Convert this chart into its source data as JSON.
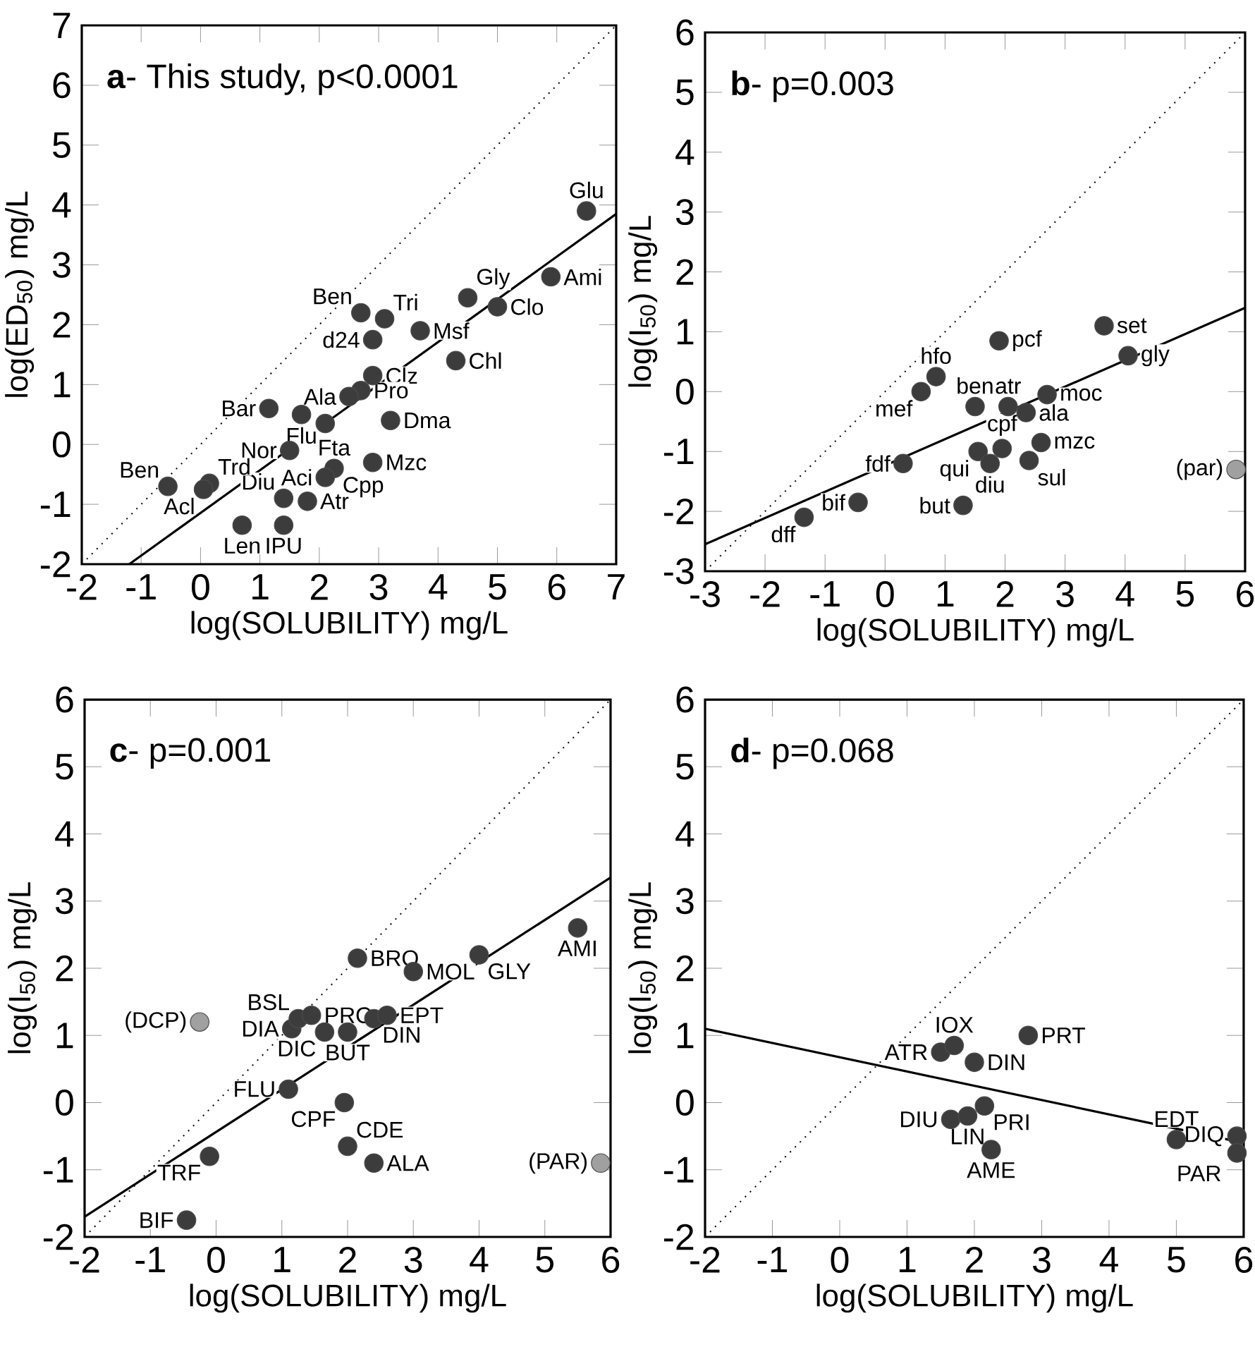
{
  "chart_data": [
    {
      "type": "scatter",
      "title": "**a**- This study, p<0.0001",
      "xlabel": "log(SOLUBILITY)  mg/L",
      "ylabel": "log(ED$_{50}$)  mg/L",
      "xlim": [
        -2,
        7
      ],
      "ylim": [
        -2,
        7
      ],
      "xticks": [
        -2,
        -1,
        0,
        1,
        2,
        3,
        4,
        5,
        6,
        7
      ],
      "yticks": [
        -2,
        -1,
        0,
        1,
        2,
        3,
        4,
        5,
        6,
        7
      ],
      "series": [
        {
          "type": "scatter",
          "marker": "circle",
          "color": "#3c3c3c",
          "x": [
            6.5,
            5.9,
            5.0,
            4.5,
            4.3,
            3.7,
            3.1,
            2.7,
            2.9,
            2.9,
            2.7,
            2.5,
            3.2,
            1.15,
            1.7,
            1.5,
            2.25,
            2.1,
            2.9,
            1.4,
            1.8,
            0.7,
            1.4,
            -0.55,
            0.15,
            0.05,
            2.1
          ],
          "values": [
            3.9,
            2.8,
            2.3,
            2.45,
            1.4,
            1.9,
            2.1,
            2.2,
            1.75,
            1.15,
            0.9,
            0.8,
            0.4,
            0.6,
            0.5,
            -0.1,
            -0.4,
            -0.55,
            -0.3,
            -0.9,
            -0.95,
            -1.35,
            -1.35,
            -0.7,
            -0.65,
            -0.75,
            0.35
          ]
        },
        {
          "type": "line",
          "color": "#000000",
          "marker": "none",
          "line_style": "solid",
          "x": [
            -1.2,
            7
          ],
          "values": [
            -2,
            3.85
          ]
        },
        {
          "type": "line",
          "color": "#000000",
          "marker": "none",
          "line_style": "dotted",
          "x": [
            -2,
            7
          ],
          "values": [
            -2,
            7
          ]
        }
      ],
      "annotations": [
        {
          "text": "Glu",
          "x": 6.5,
          "y": 3.9
        },
        {
          "text": "Ami",
          "x": 5.9,
          "y": 2.8
        },
        {
          "text": "Clo",
          "x": 5.0,
          "y": 2.3
        },
        {
          "text": "Gly",
          "x": 4.5,
          "y": 2.45
        },
        {
          "text": "Chl",
          "x": 4.3,
          "y": 1.4
        },
        {
          "text": "Msf",
          "x": 3.7,
          "y": 1.9
        },
        {
          "text": "Tri",
          "x": 3.1,
          "y": 2.1
        },
        {
          "text": "Ben",
          "x": 2.7,
          "y": 2.2
        },
        {
          "text": "d24",
          "x": 2.9,
          "y": 1.75
        },
        {
          "text": "Clz",
          "x": 2.9,
          "y": 1.15
        },
        {
          "text": "Pro",
          "x": 2.7,
          "y": 0.9
        },
        {
          "text": "Ala",
          "x": 2.5,
          "y": 0.8
        },
        {
          "text": "Dma",
          "x": 3.2,
          "y": 0.4
        },
        {
          "text": "Bar",
          "x": 1.15,
          "y": 0.6
        },
        {
          "text": "Flu",
          "x": 1.7,
          "y": 0.5
        },
        {
          "text": "Nor",
          "x": 1.5,
          "y": -0.1
        },
        {
          "text": "Fta",
          "x": 2.25,
          "y": -0.4
        },
        {
          "text": "Aci",
          "x": 2.1,
          "y": -0.55
        },
        {
          "text": "Mzc",
          "x": 2.9,
          "y": -0.3
        },
        {
          "text": "Cpp",
          "x": 2.25,
          "y": -0.4
        },
        {
          "text": "Diu",
          "x": 1.4,
          "y": -0.9
        },
        {
          "text": "Atr",
          "x": 1.8,
          "y": -0.95
        },
        {
          "text": "Len",
          "x": 0.7,
          "y": -1.35
        },
        {
          "text": "IPU",
          "x": 1.4,
          "y": -1.35
        },
        {
          "text": "Ben",
          "x": -0.55,
          "y": -0.7
        },
        {
          "text": "Trd",
          "x": 0.15,
          "y": -0.65
        },
        {
          "text": "Acl",
          "x": 0.05,
          "y": -0.75
        }
      ]
    },
    {
      "type": "scatter",
      "title": "**b**-    p=0.003",
      "xlabel": "log(SOLUBILITY)  mg/L",
      "ylabel": "log(I$_{50}$)  mg/L",
      "xlim": [
        -3,
        6
      ],
      "ylim": [
        -3,
        6
      ],
      "xticks": [
        -3,
        -2,
        -1,
        0,
        1,
        2,
        3,
        4,
        5,
        6
      ],
      "yticks": [
        -3,
        -2,
        -1,
        0,
        1,
        2,
        3,
        4,
        5,
        6
      ],
      "series": [
        {
          "type": "scatter",
          "marker": "circle",
          "color": "#3c3c3c",
          "x": [
            -1.35,
            -0.45,
            0.3,
            0.6,
            0.85,
            1.3,
            1.5,
            1.55,
            1.75,
            1.95,
            1.9,
            2.05,
            2.35,
            2.4,
            2.6,
            2.7,
            3.65,
            4.05
          ],
          "values": [
            -2.1,
            -1.85,
            -1.2,
            0.0,
            0.25,
            -1.9,
            -0.25,
            -1.0,
            -1.2,
            -0.95,
            0.85,
            -0.25,
            -0.35,
            -1.15,
            -0.85,
            -0.05,
            1.1,
            0.6
          ]
        },
        {
          "type": "scatter",
          "marker": "circle",
          "color": "#a0a0a0",
          "x": [
            5.85
          ],
          "values": [
            -1.3
          ]
        },
        {
          "type": "line",
          "color": "#000000",
          "marker": "none",
          "line_style": "solid",
          "x": [
            -3,
            6
          ],
          "values": [
            -2.55,
            1.4
          ]
        },
        {
          "type": "line",
          "color": "#000000",
          "marker": "none",
          "line_style": "dotted",
          "x": [
            -3,
            6
          ],
          "values": [
            -3,
            6
          ]
        }
      ],
      "annotations": [
        {
          "text": "dff",
          "x": -1.35,
          "y": -2.1
        },
        {
          "text": "bif",
          "x": -0.45,
          "y": -1.85
        },
        {
          "text": "fdf",
          "x": 0.3,
          "y": -1.2
        },
        {
          "text": "mef",
          "x": 0.6,
          "y": 0.0
        },
        {
          "text": "hfo",
          "x": 0.85,
          "y": 0.25
        },
        {
          "text": "but",
          "x": 1.3,
          "y": -1.9
        },
        {
          "text": "ben",
          "x": 1.5,
          "y": -0.25
        },
        {
          "text": "qui",
          "x": 1.55,
          "y": -1.0
        },
        {
          "text": "diu",
          "x": 1.75,
          "y": -1.2
        },
        {
          "text": "cpf",
          "x": 1.95,
          "y": -0.95
        },
        {
          "text": "pcf",
          "x": 1.9,
          "y": 0.85
        },
        {
          "text": "atr",
          "x": 2.05,
          "y": -0.25
        },
        {
          "text": "ala",
          "x": 2.35,
          "y": -0.35
        },
        {
          "text": "sul",
          "x": 2.4,
          "y": -1.15
        },
        {
          "text": "mzc",
          "x": 2.6,
          "y": -0.85
        },
        {
          "text": "moc",
          "x": 2.7,
          "y": -0.05
        },
        {
          "text": "set",
          "x": 3.65,
          "y": 1.1
        },
        {
          "text": "gly",
          "x": 4.05,
          "y": 0.6
        },
        {
          "text": "(par)",
          "x": 5.85,
          "y": -1.3
        }
      ]
    },
    {
      "type": "scatter",
      "title": "**c**-  p=0.001",
      "xlabel": "log(SOLUBILITY)  mg/L",
      "ylabel": "log(I$_{50}$)  mg/L",
      "xlim": [
        -2,
        6
      ],
      "ylim": [
        -2,
        6
      ],
      "xticks": [
        -2,
        -1,
        0,
        1,
        2,
        3,
        4,
        5,
        6
      ],
      "yticks": [
        -2,
        -1,
        0,
        1,
        2,
        3,
        4,
        5,
        6
      ],
      "series": [
        {
          "type": "scatter",
          "marker": "circle",
          "color": "#3c3c3c",
          "x": [
            -0.45,
            -0.1,
            1.1,
            1.15,
            1.25,
            1.45,
            1.65,
            2.0,
            1.95,
            2.0,
            2.4,
            2.15,
            2.4,
            2.6,
            3.0,
            4.0,
            5.5
          ],
          "values": [
            -1.75,
            -0.8,
            0.2,
            1.1,
            1.25,
            1.3,
            1.05,
            1.05,
            0.0,
            -0.65,
            -0.9,
            2.15,
            1.25,
            1.3,
            1.95,
            2.2,
            2.6
          ]
        },
        {
          "type": "scatter",
          "marker": "circle",
          "color": "#a0a0a0",
          "x": [
            -0.25,
            5.85
          ],
          "values": [
            1.2,
            -0.9
          ]
        },
        {
          "type": "line",
          "color": "#000000",
          "marker": "none",
          "line_style": "solid",
          "x": [
            -2,
            6
          ],
          "values": [
            -1.7,
            3.35
          ]
        },
        {
          "type": "line",
          "color": "#000000",
          "marker": "none",
          "line_style": "dotted",
          "x": [
            -2,
            6
          ],
          "values": [
            -2,
            6
          ]
        }
      ],
      "annotations": [
        {
          "text": "BIF",
          "x": -0.45,
          "y": -1.75
        },
        {
          "text": "TRF",
          "x": -0.1,
          "y": -0.8
        },
        {
          "text": "(DCP)",
          "x": -0.25,
          "y": 1.2
        },
        {
          "text": "FLU",
          "x": 1.1,
          "y": 0.2
        },
        {
          "text": "DIA",
          "x": 1.15,
          "y": 1.1
        },
        {
          "text": "BSL",
          "x": 1.25,
          "y": 1.25
        },
        {
          "text": "PRO",
          "x": 1.45,
          "y": 1.3
        },
        {
          "text": "DIC",
          "x": 1.65,
          "y": 1.05
        },
        {
          "text": "BUT",
          "x": 2.0,
          "y": 1.05
        },
        {
          "text": "CPF",
          "x": 1.95,
          "y": 0.0
        },
        {
          "text": "CDE",
          "x": 2.0,
          "y": -0.65
        },
        {
          "text": "ALA",
          "x": 2.4,
          "y": -0.9
        },
        {
          "text": "BRO",
          "x": 2.15,
          "y": 2.15
        },
        {
          "text": "DIN",
          "x": 2.4,
          "y": 1.25
        },
        {
          "text": "EPT",
          "x": 2.6,
          "y": 1.3
        },
        {
          "text": "MOL",
          "x": 3.0,
          "y": 1.95
        },
        {
          "text": "GLY",
          "x": 4.0,
          "y": 2.2
        },
        {
          "text": "AMI",
          "x": 5.5,
          "y": 2.6
        },
        {
          "text": "(PAR)",
          "x": 5.85,
          "y": -0.9
        }
      ]
    },
    {
      "type": "scatter",
      "title": "**d**-    p=0.068",
      "xlabel": "log(SOLUBILITY)  mg/L",
      "ylabel": "log(I$_{50}$)  mg/L",
      "xlim": [
        -2,
        6
      ],
      "ylim": [
        -2,
        6
      ],
      "xticks": [
        -2,
        -1,
        0,
        1,
        2,
        3,
        4,
        5,
        6
      ],
      "yticks": [
        -2,
        -1,
        0,
        1,
        2,
        3,
        4,
        5,
        6
      ],
      "series": [
        {
          "type": "scatter",
          "marker": "circle",
          "color": "#3c3c3c",
          "x": [
            1.5,
            1.7,
            2.0,
            2.8,
            1.65,
            1.9,
            2.15,
            2.25,
            5.0,
            5.9,
            5.9
          ],
          "values": [
            0.75,
            0.85,
            0.6,
            1.0,
            -0.25,
            -0.2,
            -0.05,
            -0.7,
            -0.55,
            -0.5,
            -0.75
          ]
        },
        {
          "type": "line",
          "color": "#000000",
          "marker": "none",
          "line_style": "solid",
          "x": [
            -2,
            6
          ],
          "values": [
            1.1,
            -0.6
          ]
        },
        {
          "type": "line",
          "color": "#000000",
          "marker": "none",
          "line_style": "dotted",
          "x": [
            -2,
            6
          ],
          "values": [
            -2,
            6
          ]
        }
      ],
      "annotations": [
        {
          "text": "ATR",
          "x": 1.5,
          "y": 0.75
        },
        {
          "text": "IOX",
          "x": 1.7,
          "y": 0.85
        },
        {
          "text": "DIN",
          "x": 2.0,
          "y": 0.6
        },
        {
          "text": "PRT",
          "x": 2.8,
          "y": 1.0
        },
        {
          "text": "DIU",
          "x": 1.65,
          "y": -0.25
        },
        {
          "text": "LIN",
          "x": 1.9,
          "y": -0.2
        },
        {
          "text": "PRI",
          "x": 2.15,
          "y": -0.05
        },
        {
          "text": "AME",
          "x": 2.25,
          "y": -0.7
        },
        {
          "text": "EDT",
          "x": 5.0,
          "y": -0.55
        },
        {
          "text": "DIQ",
          "x": 5.9,
          "y": -0.5
        },
        {
          "text": "PAR",
          "x": 5.9,
          "y": -0.75
        }
      ]
    }
  ]
}
